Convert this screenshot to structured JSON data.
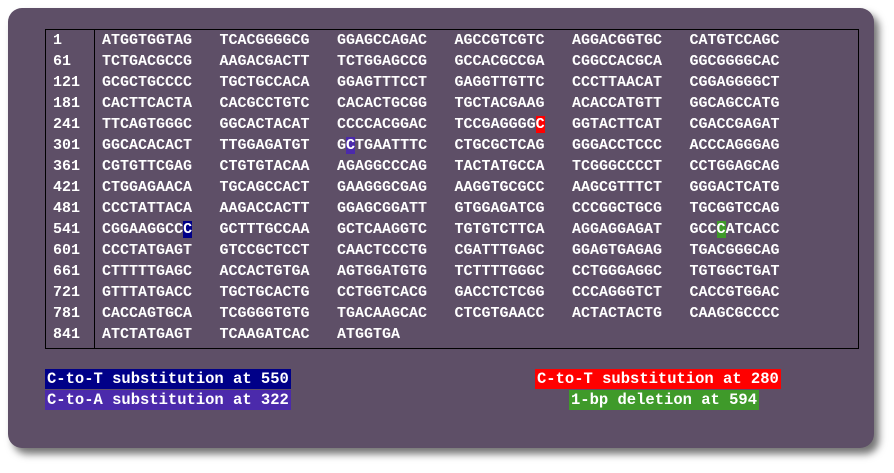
{
  "sequence_rows": [
    {
      "num": "1",
      "blocks": [
        "ATGGTGGTAG",
        "TCACGGGGCG",
        "GGAGCCAGAC",
        "AGCCGTCGTC",
        "AGGACGGTGC",
        "CATGTCCAGC"
      ]
    },
    {
      "num": "61",
      "blocks": [
        "TCTGACGCCG",
        "AAGACGACTT",
        "TCTGGAGCCG",
        "GCCACGCCGA",
        "CGGCCACGCA",
        "GGCGGGGCAC"
      ]
    },
    {
      "num": "121",
      "blocks": [
        "GCGCTGCCCC",
        "TGCTGCCACA",
        "GGAGTTTCCT",
        "GAGGTTGTTC",
        "CCCTTAACAT",
        "CGGAGGGGCT"
      ]
    },
    {
      "num": "181",
      "blocks": [
        "CACTTCACTA",
        "CACGCCTGTC",
        "CACACTGCGG",
        "TGCTACGAAG",
        "ACACCATGTT",
        "GGCAGCCATG"
      ]
    },
    {
      "num": "241",
      "blocks": [
        "TTCAGTGGGC",
        "GGCACTACAT",
        "CCCCACGGAC",
        "TCCGAGGGGC",
        "GGTACTTCAT",
        "CGACCGAGAT"
      ]
    },
    {
      "num": "301",
      "blocks": [
        "GGCACACACT",
        "TTGGAGATGT",
        "GCTGAATTTC",
        "CTGCGCTCAG",
        "GGGACCTCCC",
        "ACCCAGGGAG"
      ]
    },
    {
      "num": "361",
      "blocks": [
        "CGTGTTCGAG",
        "CTGTGTACAA",
        "AGAGGCCCAG",
        "TACTATGCCA",
        "TCGGGCCCCT",
        "CCTGGAGCAG"
      ]
    },
    {
      "num": "421",
      "blocks": [
        "CTGGAGAACA",
        "TGCAGCCACT",
        "GAAGGGCGAG",
        "AAGGTGCGCC",
        "AAGCGTTTCT",
        "GGGACTCATG"
      ]
    },
    {
      "num": "481",
      "blocks": [
        "CCCTATTACA",
        "AAGACCACTT",
        "GGAGCGGATT",
        "GTGGAGATCG",
        "CCCGGCTGCG",
        "TGCGGTCCAG"
      ]
    },
    {
      "num": "541",
      "blocks": [
        "CGGAAGGCCC",
        "GCTTTGCCAA",
        "GCTCAAGGTC",
        "TGTGTCTTCA",
        "AGGAGGAGAT",
        "GCCCATCACC"
      ]
    },
    {
      "num": "601",
      "blocks": [
        "CCCTATGAGT",
        "GTCCGCTCCT",
        "CAACTCCCTG",
        "CGATTTGAGC",
        "GGAGTGAGAG",
        "TGACGGGCAG"
      ]
    },
    {
      "num": "661",
      "blocks": [
        "CTTTTTGAGC",
        "ACCACTGTGA",
        "AGTGGATGTG",
        "TCTTTTGGGC",
        "CCTGGGAGGC",
        "TGTGGCTGAT"
      ]
    },
    {
      "num": "721",
      "blocks": [
        "GTTTATGACC",
        "TGCTGCACTG",
        "CCTGGTCACG",
        "GACCTCTCGG",
        "CCCAGGGTCT",
        "CACCGTGGAC"
      ]
    },
    {
      "num": "781",
      "blocks": [
        "CACCAGTGCA",
        "TCGGGGTGTG",
        "TGACAAGCAC",
        "CTCGTGAACC",
        "ACTACTACTG",
        "CAAGCGCCCC"
      ]
    },
    {
      "num": "841",
      "blocks": [
        "ATCTATGAGT",
        "TCAAGATCAC",
        "ATGGTGA"
      ]
    }
  ],
  "mutations": [
    {
      "row": 4,
      "block": 3,
      "pos": 9,
      "class": "mut-red"
    },
    {
      "row": 5,
      "block": 2,
      "pos": 1,
      "class": "mut-purple"
    },
    {
      "row": 9,
      "block": 0,
      "pos": 9,
      "class": "mut-blue"
    },
    {
      "row": 9,
      "block": 5,
      "pos": 3,
      "class": "mut-green"
    }
  ],
  "legend": {
    "c_to_t_550": "C-to-T substitution at 550",
    "c_to_a_322": "C-to-A substitution at 322",
    "c_to_t_280": "C-to-T substitution at 280",
    "deletion_594": "1-bp deletion at 594"
  },
  "colors": {
    "panel_bg": "#5e4f67",
    "blue": "#000088",
    "red": "#ff0000",
    "purple": "#4b2aab",
    "green": "#3f9a2a"
  }
}
